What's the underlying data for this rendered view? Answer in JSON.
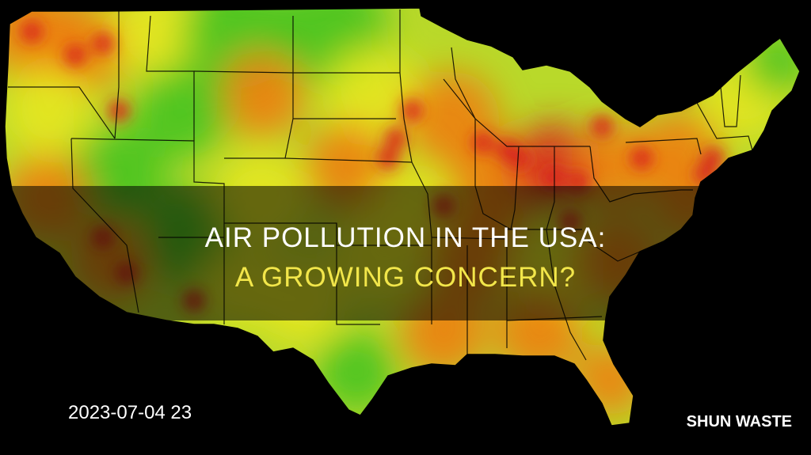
{
  "map": {
    "region": "USA",
    "colors": {
      "low": "#3ec21e",
      "mid": "#e9e81c",
      "high": "#f07a12",
      "severe": "#d8221c",
      "background": "#000000",
      "boundary": "#000000"
    }
  },
  "overlay": {
    "title_line1": "AIR POLLUTION IN THE USA:",
    "title_line2": "A GROWING CONCERN?",
    "title_line1_color": "#ffffff",
    "title_line2_color": "#f2e64a"
  },
  "timestamp": "2023-07-04 23",
  "brand": "SHUN WASTE"
}
